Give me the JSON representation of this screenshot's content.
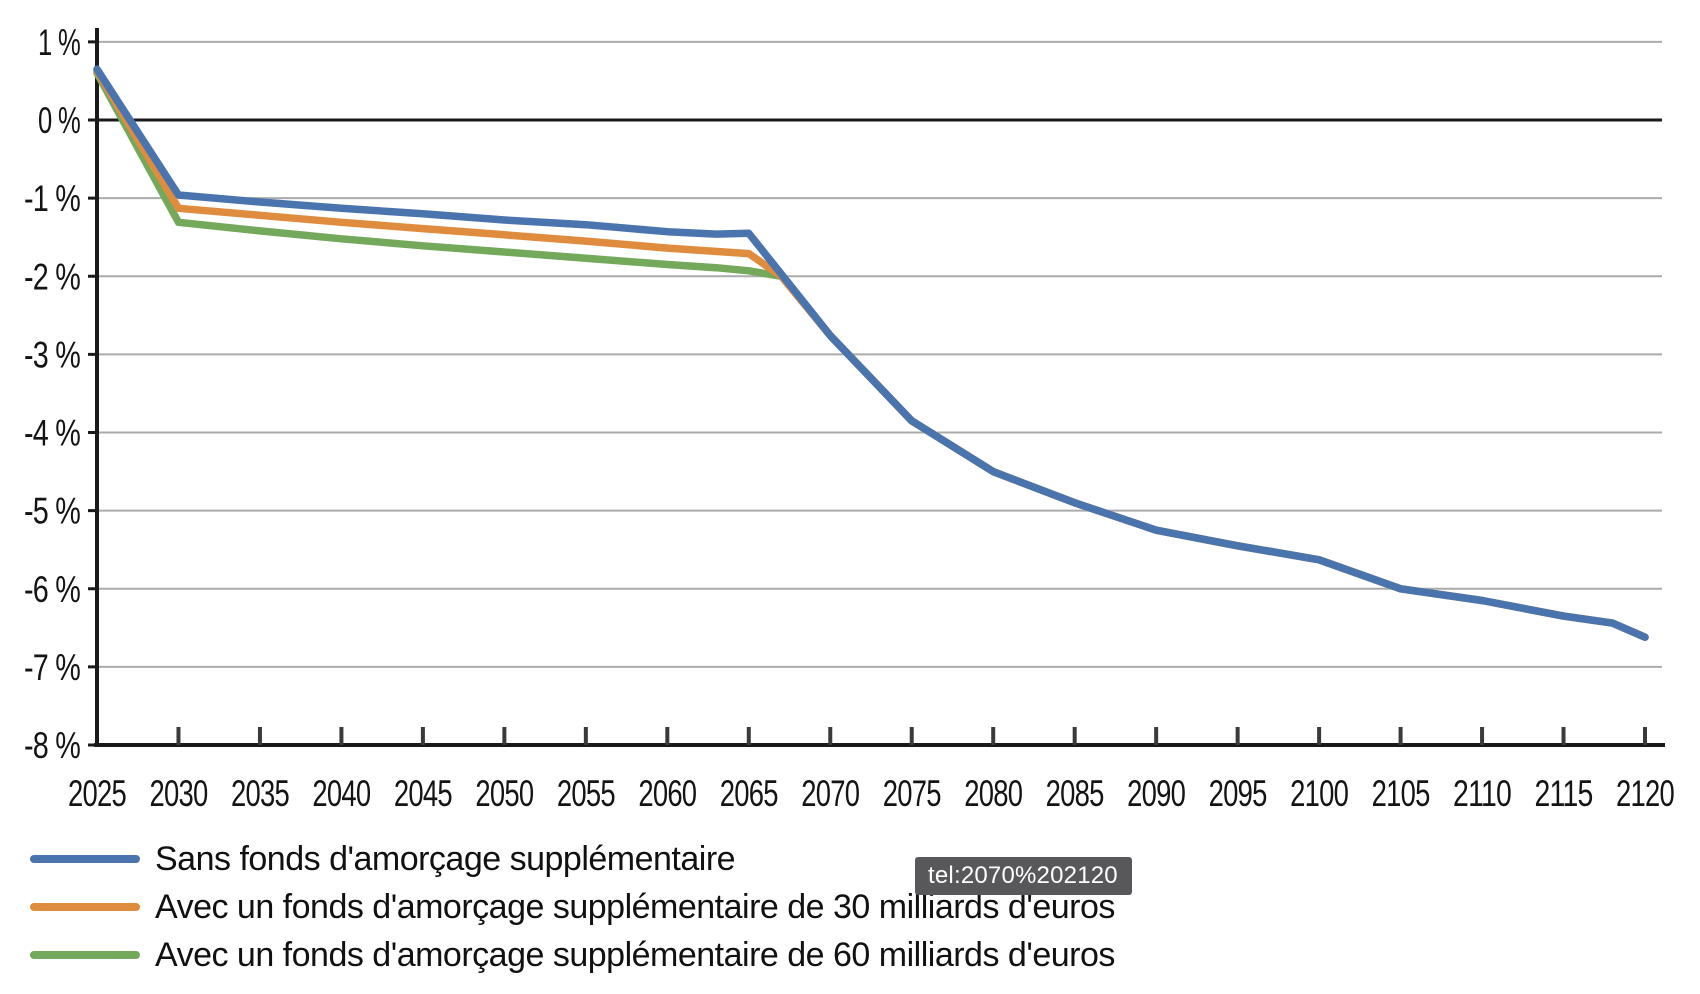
{
  "tooltip": {
    "text": "tel:2070%202120",
    "bg": "#58585A",
    "text_color": "#FFFFFF"
  },
  "chart_data": {
    "type": "line",
    "title": "",
    "xlabel": "",
    "ylabel": "",
    "grid": true,
    "legend_position": "bottom-left",
    "xlim": [
      2025,
      2121
    ],
    "ylim": [
      -8,
      1
    ],
    "x_ticks": [
      2025,
      2030,
      2035,
      2040,
      2045,
      2050,
      2055,
      2060,
      2065,
      2070,
      2075,
      2080,
      2085,
      2090,
      2095,
      2100,
      2105,
      2110,
      2115,
      2120
    ],
    "y_ticks": [
      1,
      0,
      -1,
      -2,
      -3,
      -4,
      -5,
      -6,
      -7,
      -8
    ],
    "y_tick_labels": [
      "1 %",
      "0 %",
      "-1 %",
      "-2 %",
      "-3 %",
      "-4 %",
      "-5 %",
      "-6 %",
      "-7 %",
      "-8 %"
    ],
    "colors": {
      "grid": "#ABABAB",
      "axis": "#1A1A1A",
      "zero_line": "#1A1A1A"
    },
    "series": [
      {
        "name": "sans-fonds",
        "label": "Sans fonds d'amorçage supplémentaire",
        "color": "#4A74AE",
        "points": [
          [
            2025,
            0.65
          ],
          [
            2030,
            -0.96
          ],
          [
            2035,
            -1.05
          ],
          [
            2040,
            -1.13
          ],
          [
            2045,
            -1.2
          ],
          [
            2050,
            -1.28
          ],
          [
            2055,
            -1.34
          ],
          [
            2060,
            -1.43
          ],
          [
            2063,
            -1.46
          ],
          [
            2065,
            -1.45
          ],
          [
            2070,
            -2.76
          ],
          [
            2075,
            -3.85
          ],
          [
            2080,
            -4.5
          ],
          [
            2085,
            -4.9
          ],
          [
            2090,
            -5.25
          ],
          [
            2095,
            -5.45
          ],
          [
            2100,
            -5.63
          ],
          [
            2105,
            -6.0
          ],
          [
            2110,
            -6.15
          ],
          [
            2115,
            -6.35
          ],
          [
            2118,
            -6.44
          ],
          [
            2120,
            -6.62
          ]
        ]
      },
      {
        "name": "fonds-30-milliards",
        "label": "Avec un fonds d'amorçage supplémentaire de 30 milliards d'euros",
        "color": "#E08C3E",
        "points": [
          [
            2025,
            0.63
          ],
          [
            2030,
            -1.13
          ],
          [
            2035,
            -1.22
          ],
          [
            2040,
            -1.31
          ],
          [
            2045,
            -1.39
          ],
          [
            2050,
            -1.47
          ],
          [
            2055,
            -1.55
          ],
          [
            2060,
            -1.64
          ],
          [
            2065,
            -1.71
          ],
          [
            2067,
            -2.0
          ],
          [
            2070,
            -2.76
          ],
          [
            2075,
            -3.85
          ],
          [
            2080,
            -4.5
          ],
          [
            2085,
            -4.9
          ],
          [
            2090,
            -5.25
          ],
          [
            2095,
            -5.45
          ],
          [
            2100,
            -5.63
          ],
          [
            2105,
            -6.0
          ],
          [
            2110,
            -6.15
          ],
          [
            2115,
            -6.35
          ],
          [
            2118,
            -6.44
          ],
          [
            2120,
            -6.62
          ]
        ]
      },
      {
        "name": "fonds-60-milliards",
        "label": "Avec un fonds d'amorçage supplémentaire de 60 milliards d'euros",
        "color": "#74A95C",
        "points": [
          [
            2025,
            0.6
          ],
          [
            2030,
            -1.31
          ],
          [
            2035,
            -1.42
          ],
          [
            2040,
            -1.52
          ],
          [
            2045,
            -1.61
          ],
          [
            2050,
            -1.69
          ],
          [
            2055,
            -1.77
          ],
          [
            2060,
            -1.85
          ],
          [
            2063,
            -1.89
          ],
          [
            2065,
            -1.93
          ],
          [
            2067,
            -2.0
          ],
          [
            2070,
            -2.76
          ],
          [
            2075,
            -3.85
          ],
          [
            2080,
            -4.5
          ],
          [
            2085,
            -4.9
          ],
          [
            2090,
            -5.25
          ],
          [
            2095,
            -5.45
          ],
          [
            2100,
            -5.63
          ],
          [
            2105,
            -6.0
          ],
          [
            2110,
            -6.15
          ],
          [
            2115,
            -6.35
          ],
          [
            2118,
            -6.44
          ],
          [
            2120,
            -6.62
          ]
        ]
      }
    ]
  }
}
